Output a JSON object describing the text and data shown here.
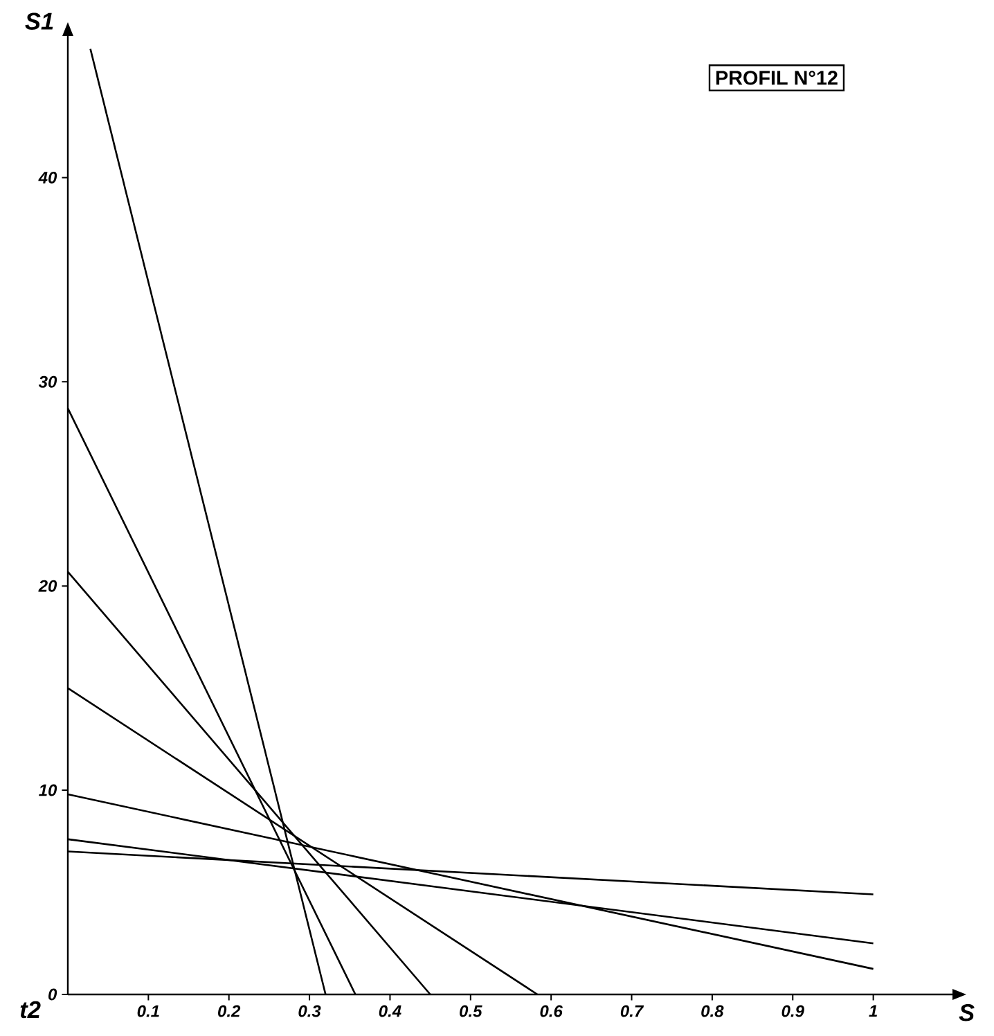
{
  "chart_data": {
    "type": "line",
    "title": "PROFIL N°12",
    "xlabel": "S",
    "ylabel": "S1",
    "annotations": [
      "t2"
    ],
    "xlim": [
      0,
      1.1
    ],
    "ylim": [
      0,
      47
    ],
    "xticks": [
      0.1,
      0.2,
      0.3,
      0.4,
      0.5,
      0.6,
      0.7,
      0.8,
      0.9,
      1
    ],
    "yticks": [
      0,
      10,
      20,
      30,
      40
    ],
    "grid": false,
    "marker": "none",
    "line_style": "solid",
    "series": [
      {
        "color": "#000000",
        "x": [
          0.028,
          0.32
        ],
        "values": [
          46.3,
          0
        ]
      },
      {
        "color": "#000000",
        "x": [
          0,
          0.357
        ],
        "values": [
          28.7,
          0
        ]
      },
      {
        "color": "#000000",
        "x": [
          0,
          0.45
        ],
        "values": [
          20.7,
          0
        ]
      },
      {
        "color": "#000000",
        "x": [
          0,
          0.583
        ],
        "values": [
          15,
          0
        ]
      },
      {
        "color": "#000000",
        "x": [
          0,
          1
        ],
        "values": [
          9.8,
          1.25
        ]
      },
      {
        "color": "#000000",
        "x": [
          0,
          1
        ],
        "values": [
          7.6,
          2.5
        ]
      },
      {
        "color": "#000000",
        "x": [
          0,
          1
        ],
        "values": [
          7,
          4.9
        ]
      }
    ]
  }
}
